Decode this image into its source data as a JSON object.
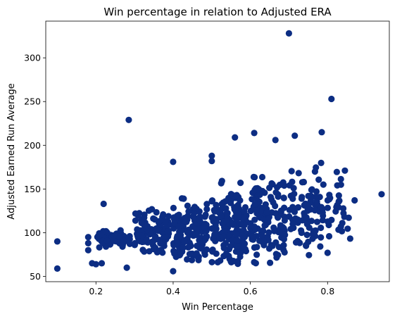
{
  "chart_data": {
    "type": "scatter",
    "title": "Win percentage in relation to Adjusted ERA",
    "xlabel": "Win Percentage",
    "ylabel": "Adjusted Earned Run Average",
    "xlim": [
      0.07,
      0.96
    ],
    "ylim": [
      44,
      342
    ],
    "xticks": [
      0.2,
      0.4,
      0.6,
      0.8
    ],
    "xtick_labels": [
      "0.2",
      "0.4",
      "0.6",
      "0.8"
    ],
    "yticks": [
      50,
      100,
      150,
      200,
      250,
      300
    ],
    "ytick_labels": [
      "50",
      "100",
      "150",
      "200",
      "250",
      "300"
    ],
    "grid": false,
    "marker_color": "#0c2d83",
    "outliers": [
      [
        0.1,
        90
      ],
      [
        0.1,
        59
      ],
      [
        0.7,
        328
      ],
      [
        0.81,
        253
      ],
      [
        0.285,
        229
      ],
      [
        0.94,
        144
      ],
      [
        0.785,
        215
      ],
      [
        0.61,
        214
      ],
      [
        0.715,
        211
      ],
      [
        0.56,
        209
      ],
      [
        0.665,
        206
      ],
      [
        0.5,
        188
      ],
      [
        0.5,
        182
      ],
      [
        0.4,
        181
      ],
      [
        0.8,
        77
      ],
      [
        0.4,
        56
      ],
      [
        0.87,
        137
      ],
      [
        0.845,
        171
      ],
      [
        0.2,
        64
      ],
      [
        0.215,
        65
      ],
      [
        0.19,
        65
      ],
      [
        0.18,
        95
      ],
      [
        0.18,
        80
      ],
      [
        0.18,
        88
      ],
      [
        0.22,
        133
      ],
      [
        0.28,
        60
      ]
    ],
    "bulk": [
      [
        0.2,
        0.29,
        1.3,
        86,
        100,
        20
      ],
      [
        0.3,
        0.39,
        1.6,
        82,
        118,
        26
      ],
      [
        0.4,
        0.49,
        2.4,
        76,
        128,
        30
      ],
      [
        0.5,
        0.59,
        2.8,
        72,
        140,
        30
      ],
      [
        0.6,
        0.69,
        2.2,
        70,
        150,
        28
      ],
      [
        0.7,
        0.79,
        1.4,
        80,
        158,
        28
      ],
      [
        0.8,
        0.86,
        0.5,
        95,
        160,
        28
      ]
    ]
  }
}
